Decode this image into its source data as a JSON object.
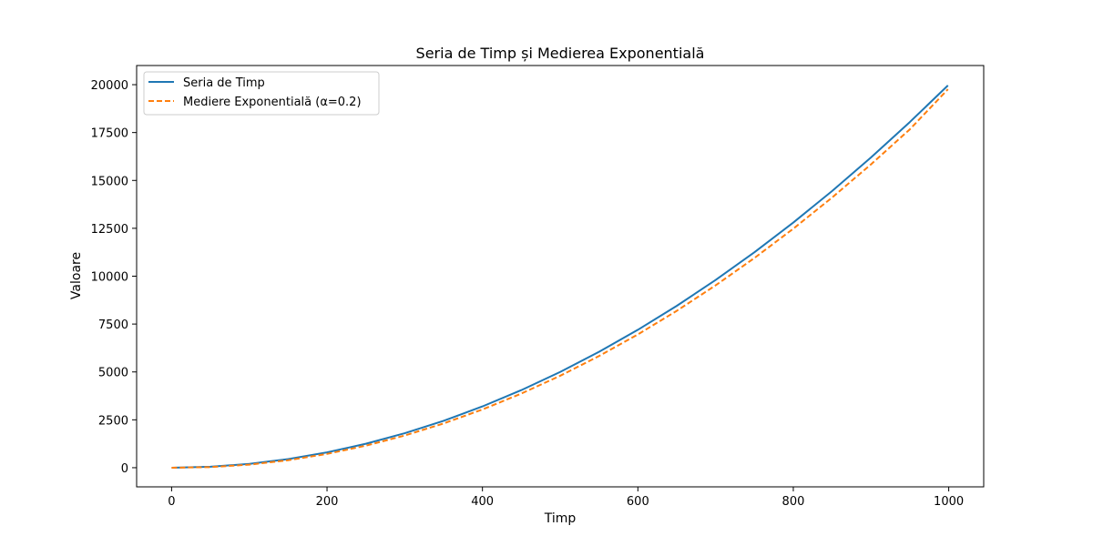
{
  "chart_data": {
    "type": "line",
    "title": "Seria de Timp și Medierea Exponentială",
    "xlabel": "Timp",
    "ylabel": "Valoare",
    "xlim": [
      -45,
      1045
    ],
    "ylim": [
      -1000,
      21000
    ],
    "xticks": [
      0,
      200,
      400,
      600,
      800,
      1000
    ],
    "yticks": [
      0,
      2500,
      5000,
      7500,
      10000,
      12500,
      15000,
      17500,
      20000
    ],
    "grid": false,
    "legend_position": "upper-left",
    "series": [
      {
        "name": "Seria de Timp",
        "color": "#1f77b4",
        "style": "solid",
        "x": [
          0,
          50,
          100,
          150,
          200,
          250,
          300,
          350,
          400,
          450,
          500,
          550,
          600,
          650,
          700,
          750,
          800,
          850,
          900,
          950,
          999
        ],
        "y": [
          0,
          50,
          200,
          450,
          800,
          1250,
          1800,
          2450,
          3200,
          4050,
          5000,
          6050,
          7200,
          8450,
          9800,
          11250,
          12800,
          14450,
          16200,
          18050,
          19960
        ]
      },
      {
        "name": "Mediere Exponentială (α=0.2)",
        "color": "#ff7f0e",
        "style": "dashed",
        "x": [
          0,
          50,
          100,
          150,
          200,
          250,
          300,
          350,
          400,
          450,
          500,
          550,
          600,
          650,
          700,
          750,
          800,
          850,
          900,
          950,
          999
        ],
        "y": [
          0,
          30,
          160,
          390,
          720,
          1150,
          1680,
          2310,
          3040,
          3870,
          4800,
          5830,
          6960,
          8190,
          9520,
          10950,
          12480,
          14110,
          15840,
          17670,
          19760
        ]
      }
    ]
  }
}
